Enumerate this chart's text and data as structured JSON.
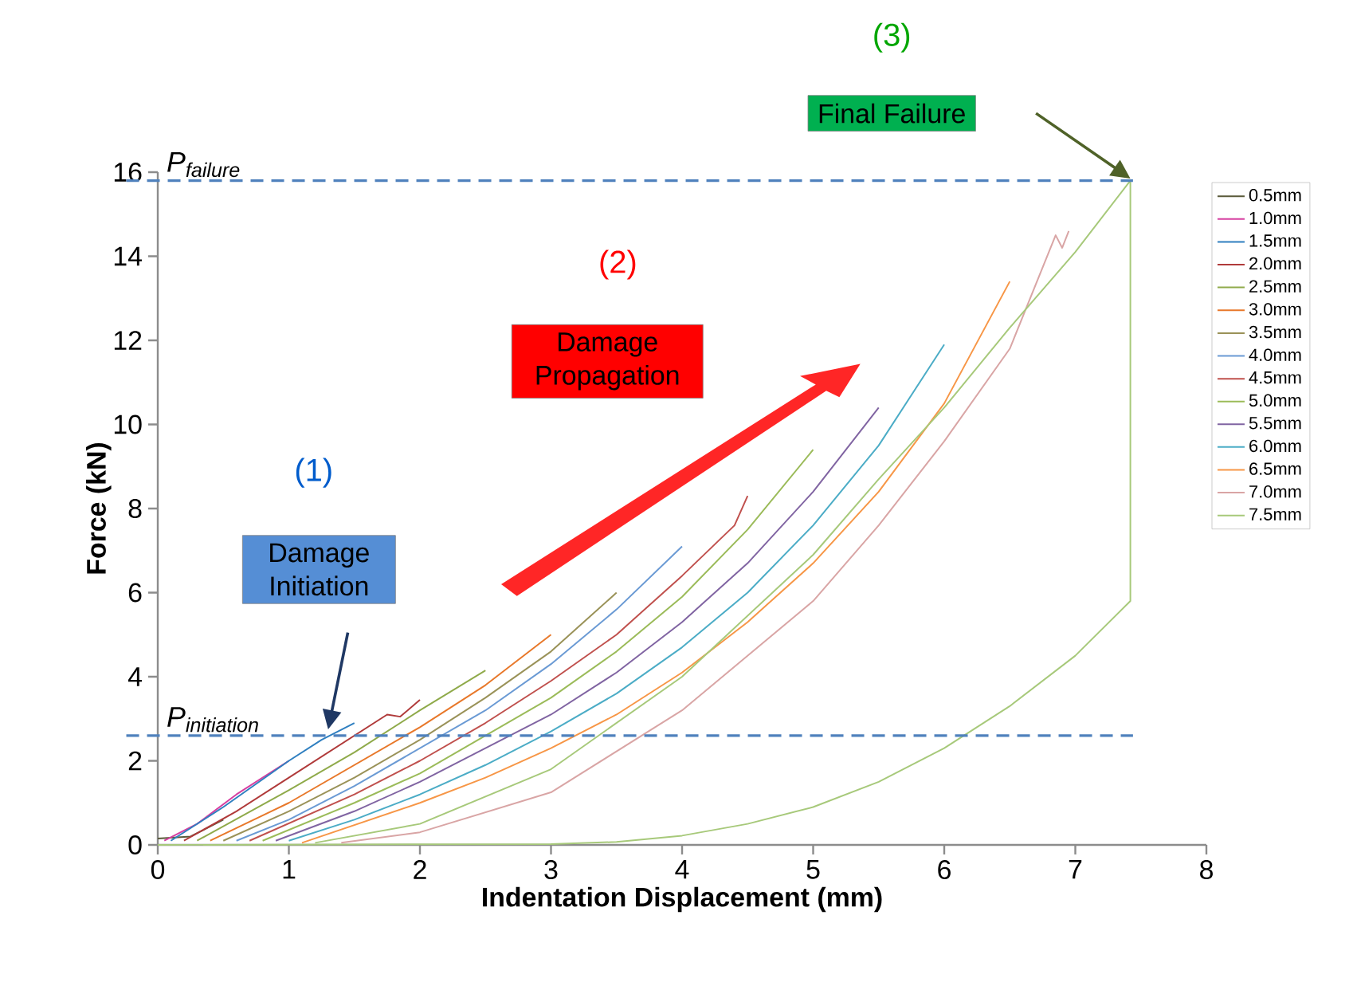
{
  "chart_data": {
    "type": "line",
    "xlabel": "Indentation Displacement (mm)",
    "ylabel": "Force (kN)",
    "xlim": [
      0,
      8
    ],
    "ylim": [
      0,
      16
    ],
    "xticks": [
      0,
      1,
      2,
      3,
      4,
      5,
      6,
      7,
      8
    ],
    "yticks": [
      0,
      2,
      4,
      6,
      8,
      10,
      12,
      14,
      16
    ],
    "grid": false,
    "legend": "right",
    "marker": "none",
    "line_style": "solid",
    "series": [
      {
        "name": "0.5mm",
        "color": "#5a5a3a",
        "x": [
          0,
          0.25,
          0.5
        ],
        "values": [
          0.15,
          0.2,
          0.6
        ]
      },
      {
        "name": "1.0mm",
        "color": "#d63fa0",
        "x": [
          0.05,
          0.3,
          0.6,
          1.0
        ],
        "values": [
          0.1,
          0.5,
          1.2,
          2.0
        ]
      },
      {
        "name": "1.5mm",
        "color": "#2f7fc0",
        "x": [
          0.1,
          0.5,
          1.0,
          1.25,
          1.5
        ],
        "values": [
          0.1,
          0.9,
          2.0,
          2.5,
          2.9
        ]
      },
      {
        "name": "2.0mm",
        "color": "#b03a3a",
        "x": [
          0.2,
          0.6,
          1.0,
          1.5,
          1.75,
          1.85,
          2.0
        ],
        "values": [
          0.1,
          0.8,
          1.6,
          2.6,
          3.1,
          3.05,
          3.45
        ]
      },
      {
        "name": "2.5mm",
        "color": "#8faa4a",
        "x": [
          0.3,
          1,
          1.5,
          2,
          2.5
        ],
        "values": [
          0.1,
          1.3,
          2.2,
          3.2,
          4.15
        ]
      },
      {
        "name": "3.0mm",
        "color": "#e8782a",
        "x": [
          0.4,
          1,
          1.5,
          2,
          2.5,
          3
        ],
        "values": [
          0.1,
          1.0,
          1.9,
          2.8,
          3.8,
          5.0
        ]
      },
      {
        "name": "3.5mm",
        "color": "#9a9258",
        "x": [
          0.5,
          1,
          1.5,
          2,
          2.5,
          3,
          3.5
        ],
        "values": [
          0.1,
          0.8,
          1.6,
          2.5,
          3.5,
          4.6,
          6.0
        ]
      },
      {
        "name": "4.0mm",
        "color": "#6a9ad4",
        "x": [
          0.6,
          1,
          1.5,
          2,
          2.5,
          3,
          3.5,
          4
        ],
        "values": [
          0.1,
          0.6,
          1.4,
          2.3,
          3.2,
          4.3,
          5.6,
          7.1
        ]
      },
      {
        "name": "4.5mm",
        "color": "#c0504d",
        "x": [
          0.7,
          1.5,
          2,
          2.5,
          3,
          3.5,
          4,
          4.4,
          4.5
        ],
        "values": [
          0.1,
          1.2,
          2.0,
          2.9,
          3.9,
          5.0,
          6.4,
          7.6,
          8.3
        ]
      },
      {
        "name": "5.0mm",
        "color": "#9bbb59",
        "x": [
          0.8,
          1.5,
          2,
          2.5,
          3,
          3.5,
          4,
          4.5,
          5
        ],
        "values": [
          0.1,
          1.0,
          1.7,
          2.6,
          3.5,
          4.6,
          5.9,
          7.5,
          9.4
        ]
      },
      {
        "name": "5.5mm",
        "color": "#8064a2",
        "x": [
          0.9,
          1.5,
          2,
          2.5,
          3,
          3.5,
          4,
          4.5,
          5,
          5.3,
          5.5
        ],
        "values": [
          0.1,
          0.8,
          1.5,
          2.3,
          3.1,
          4.1,
          5.3,
          6.7,
          8.4,
          9.6,
          10.4
        ]
      },
      {
        "name": "6.0mm",
        "color": "#4bacc6",
        "x": [
          1,
          1.5,
          2,
          2.5,
          3,
          3.5,
          4,
          4.5,
          5,
          5.5,
          6
        ],
        "values": [
          0.1,
          0.6,
          1.2,
          1.9,
          2.7,
          3.6,
          4.7,
          6.0,
          7.6,
          9.5,
          11.9
        ]
      },
      {
        "name": "6.5mm",
        "color": "#f79646",
        "x": [
          1.1,
          2,
          2.5,
          3,
          3.5,
          4,
          4.5,
          5,
          5.5,
          6,
          6.5
        ],
        "values": [
          0.05,
          1.0,
          1.6,
          2.3,
          3.1,
          4.1,
          5.3,
          6.7,
          8.4,
          10.5,
          13.4
        ]
      },
      {
        "name": "7.0mm",
        "color": "#d9a5a5",
        "x": [
          1.4,
          2,
          3,
          4,
          5,
          5.5,
          6,
          6.5,
          6.85,
          6.9,
          6.95
        ],
        "values": [
          0.05,
          0.3,
          1.25,
          3.2,
          5.8,
          7.6,
          9.6,
          11.8,
          14.5,
          14.2,
          14.6
        ]
      },
      {
        "name": "7.5mm",
        "color": "#a7c97a",
        "x": [
          1.2,
          2,
          3,
          4,
          5,
          5.5,
          6,
          6.5,
          7,
          7.42,
          7.42,
          7,
          6.5,
          6,
          5.5,
          5,
          4.5,
          4,
          3.5,
          3,
          0
        ],
        "values": [
          0.05,
          0.5,
          1.8,
          4.0,
          6.9,
          8.7,
          10.4,
          12.3,
          14.1,
          15.8,
          5.8,
          4.5,
          3.3,
          2.3,
          1.5,
          0.9,
          0.5,
          0.22,
          0.07,
          0.02,
          0
        ]
      }
    ],
    "ref_lines": [
      {
        "axis": "y",
        "value": 15.8,
        "label": "\\mathit{P}_{\\mathit{failure}}",
        "color": "#4f81bd",
        "line_style": "dashed"
      },
      {
        "axis": "y",
        "value": 2.6,
        "label": "\\mathit{P}_{\\mathit{initiation}}",
        "color": "#4f81bd",
        "line_style": "dashed"
      }
    ],
    "annotations": [
      "(1)",
      "Damage Initiation",
      "(2)",
      "Damage Propagation",
      "(3)",
      "Final Failure"
    ]
  }
}
